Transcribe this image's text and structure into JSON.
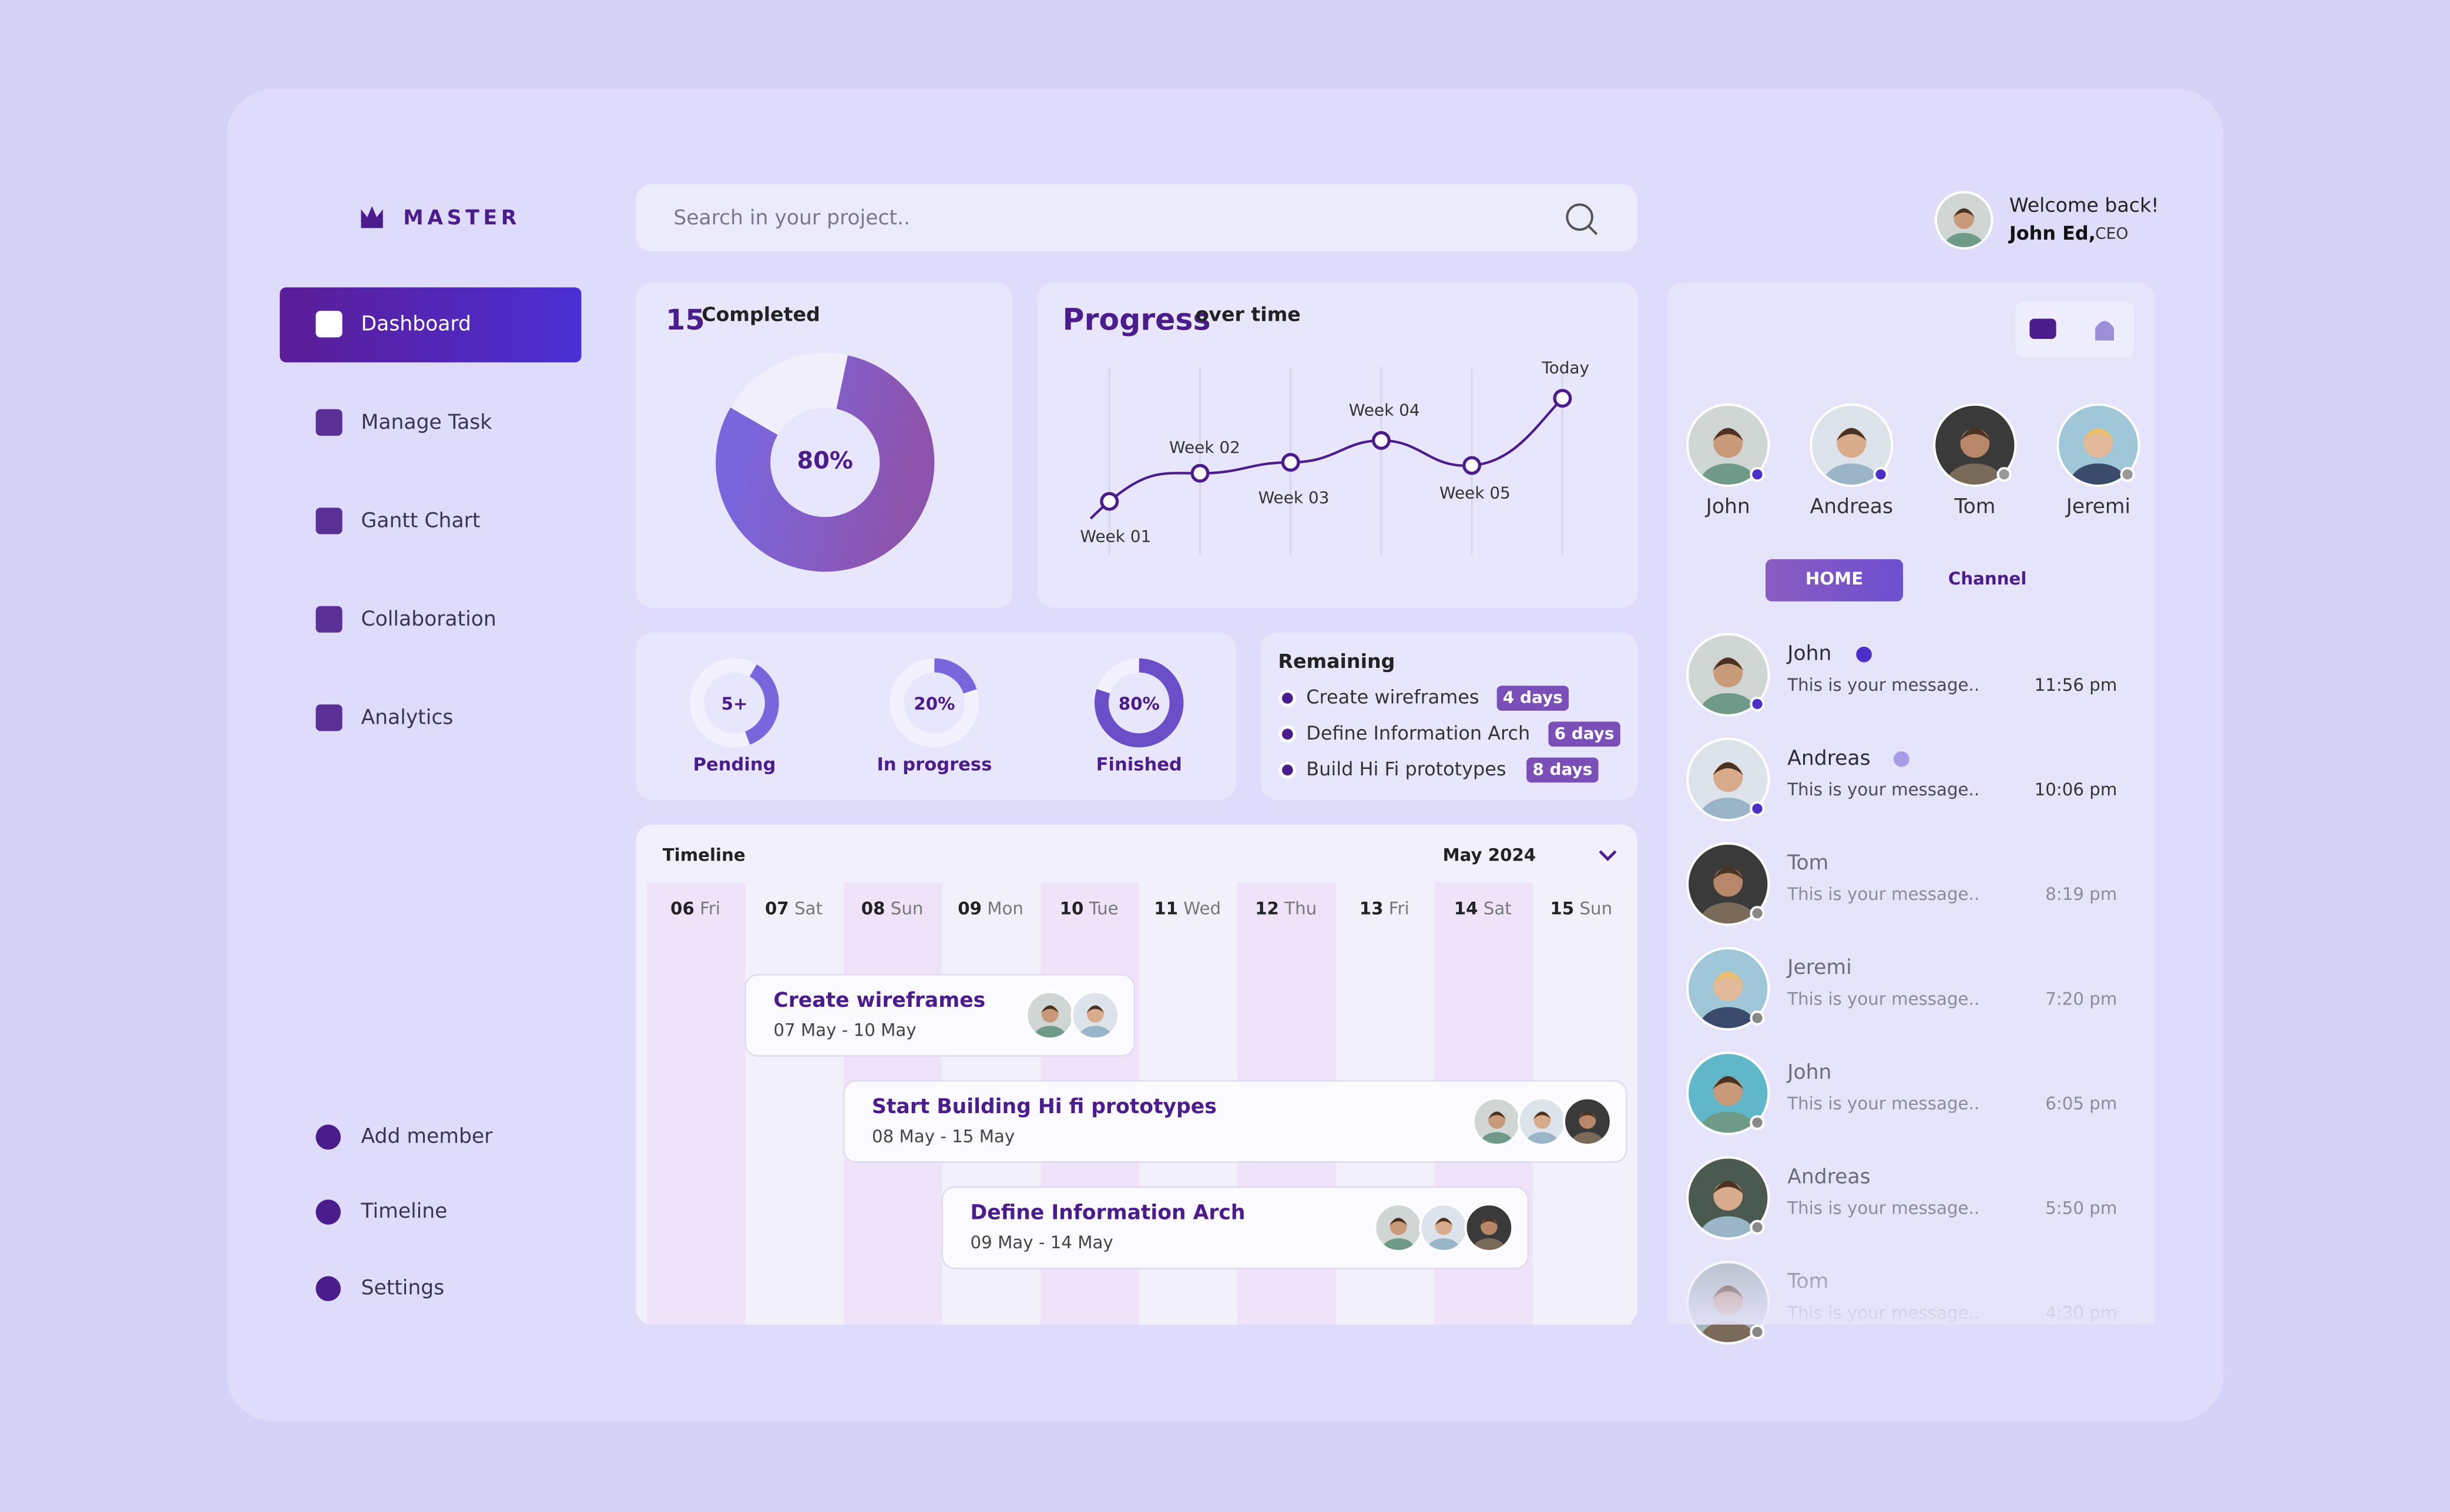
{
  "brand": "MASTER",
  "search_placeholder": "Search in your project..",
  "user": {
    "greeting": "Welcome back!",
    "name": "John Ed,",
    "role": "CEO"
  },
  "nav": {
    "main": [
      "Dashboard",
      "Manage Task",
      "Gantt Chart",
      "Collaboration",
      "Analytics"
    ],
    "bottom": [
      "Add member",
      "Timeline",
      "Settings"
    ]
  },
  "completed": {
    "count": 15,
    "label": "Completed",
    "percent": {
      "value": 80,
      "label": "80%"
    }
  },
  "progress": {
    "title": "Progress",
    "subtitle": "over time",
    "points": [
      "Week 01",
      "Week 02",
      "Week 03",
      "Week 04",
      "Week 05",
      "Today"
    ]
  },
  "status": [
    {
      "ring": "5+",
      "label": "Pending"
    },
    {
      "ring": {
        "value": 20,
        "label": "20%"
      },
      "label": "In progress"
    },
    {
      "ring": {
        "value": 80,
        "label": "80%"
      },
      "label": "Finished"
    }
  ],
  "remaining": {
    "title": "Remaining",
    "items": [
      {
        "task": "Create wireframes",
        "due": "4 days"
      },
      {
        "task": "Define Information Arch",
        "due": "6 days"
      },
      {
        "task": "Build Hi Fi prototypes",
        "due": "8 days"
      }
    ]
  },
  "timeline": {
    "title": "Timeline",
    "month": "May 2024",
    "days": [
      {
        "date": "06",
        "weekday": "Fri"
      },
      {
        "date": "07",
        "weekday": "Sat"
      },
      {
        "date": "08",
        "weekday": "Sun"
      },
      {
        "date": "09",
        "weekday": "Mon"
      },
      {
        "date": "10",
        "weekday": "Tue"
      },
      {
        "date": "11",
        "weekday": "Wed"
      },
      {
        "date": "12",
        "weekday": "Thu"
      },
      {
        "date": "13",
        "weekday": "Fri"
      },
      {
        "date": "14",
        "weekday": "Sat"
      },
      {
        "date": "15",
        "weekday": "Sun"
      }
    ],
    "tasks": [
      {
        "title": "Create wireframes",
        "dates": "07 May - 10 May"
      },
      {
        "title": "Start Building Hi fi prototypes",
        "dates": "08 May - 15 May"
      },
      {
        "title": "Define Information Arch",
        "dates": "09 May - 14 May"
      }
    ]
  },
  "contacts": {
    "favorites": [
      "John",
      "Andreas",
      "Tom",
      "Jeremi"
    ],
    "tabs": [
      "HOME",
      "Channel"
    ],
    "messages": [
      {
        "name": "John",
        "text": "This is your message..",
        "time": "11:56 pm"
      },
      {
        "name": "Andreas",
        "text": "This is your message..",
        "time": "10:06 pm"
      },
      {
        "name": "Tom",
        "text": "This is your message..",
        "time": "8:19 pm"
      },
      {
        "name": "Jeremi",
        "text": "This is your message..",
        "time": "7:20 pm"
      },
      {
        "name": "John",
        "text": "This is your message..",
        "time": "6:05 pm"
      },
      {
        "name": "Andreas",
        "text": "This is your message..",
        "time": "5:50 pm"
      },
      {
        "name": "Tom",
        "text": "This is your message..",
        "time": "4:30 pm"
      }
    ]
  }
}
